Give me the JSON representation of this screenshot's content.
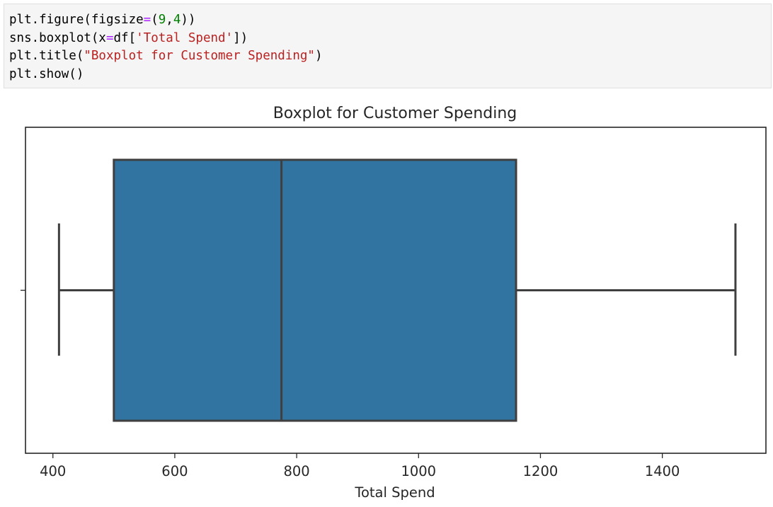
{
  "code_cell": {
    "lines": [
      [
        {
          "t": "plt.figure(figsize",
          "c": ""
        },
        {
          "t": "=",
          "c": "kw-op"
        },
        {
          "t": "(",
          "c": ""
        },
        {
          "t": "9",
          "c": "num"
        },
        {
          "t": ",",
          "c": ""
        },
        {
          "t": "4",
          "c": "num"
        },
        {
          "t": "))",
          "c": ""
        }
      ],
      [
        {
          "t": "sns.boxplot(x",
          "c": ""
        },
        {
          "t": "=",
          "c": "kw-op"
        },
        {
          "t": "df[",
          "c": ""
        },
        {
          "t": "'Total Spend'",
          "c": "str"
        },
        {
          "t": "])",
          "c": ""
        }
      ],
      [
        {
          "t": "plt.title(",
          "c": ""
        },
        {
          "t": "\"Boxplot for Customer Spending\"",
          "c": "str"
        },
        {
          "t": ")",
          "c": ""
        }
      ],
      [
        {
          "t": "plt.show()",
          "c": ""
        }
      ]
    ]
  },
  "chart_data": {
    "type": "boxplot",
    "title": "Boxplot for Customer Spending",
    "xlabel": "Total Spend",
    "ylabel": "",
    "xlim": [
      355,
      1570
    ],
    "xticks": [
      400,
      600,
      800,
      1000,
      1200,
      1400
    ],
    "box": {
      "whisker_low": 410,
      "q1": 500,
      "median": 775,
      "q3": 1160,
      "whisker_high": 1520
    },
    "box_color": "#3274a1",
    "line_color": "#3f3f3f",
    "grid": false,
    "legend": "none"
  }
}
